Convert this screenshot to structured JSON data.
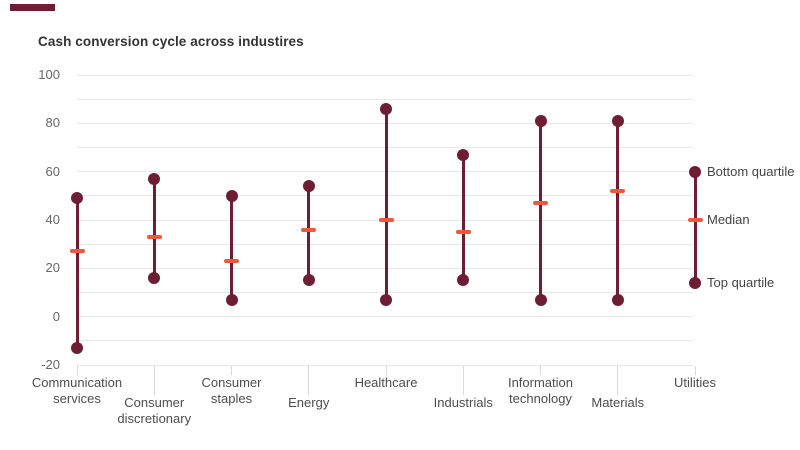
{
  "accent_bar_color": "#6e1e34",
  "title": "Cash conversion cycle across industires",
  "chart_data": {
    "type": "range-dot-plot",
    "title": "Cash conversion cycle across industires",
    "categories": [
      {
        "label": "Communication services",
        "lines": [
          "Communication",
          "services"
        ]
      },
      {
        "label": "Consumer discretionary",
        "lines": [
          "Consumer",
          "discretionary"
        ]
      },
      {
        "label": "Consumer staples",
        "lines": [
          "Consumer",
          "staples"
        ]
      },
      {
        "label": "Energy",
        "lines": [
          "Energy"
        ]
      },
      {
        "label": "Healthcare",
        "lines": [
          "Healthcare"
        ]
      },
      {
        "label": "Industrials",
        "lines": [
          "Industrials"
        ]
      },
      {
        "label": "Information technology",
        "lines": [
          "Information",
          "technology"
        ]
      },
      {
        "label": "Materials",
        "lines": [
          "Materials"
        ]
      },
      {
        "label": "Utilities",
        "lines": [
          "Utilities"
        ]
      }
    ],
    "series": [
      {
        "name": "Bottom quartile",
        "values": [
          49,
          57,
          50,
          54,
          86,
          67,
          81,
          81,
          60
        ]
      },
      {
        "name": "Median",
        "values": [
          27,
          33,
          23,
          36,
          40,
          35,
          47,
          52,
          40
        ]
      },
      {
        "name": "Top quartile",
        "values": [
          -13,
          16,
          7,
          15,
          7,
          15,
          7,
          7,
          14
        ]
      }
    ],
    "ylim": [
      -20,
      100
    ],
    "yticks_labeled": [
      100,
      80,
      60,
      40,
      20,
      0,
      -20
    ],
    "yticks_minor": [
      90,
      70,
      50,
      30,
      10,
      -10
    ],
    "grid": true,
    "legend_position": "right-of-last-category",
    "colors": {
      "range": "#6e1e34",
      "median": "#f2573b",
      "gridline": "#e7e7e7",
      "category_tick": "#d9d9d9",
      "ytick_text": "#666666",
      "category_text": "#4d4d4d",
      "legend_text": "#444444",
      "title_text": "#333333"
    }
  }
}
